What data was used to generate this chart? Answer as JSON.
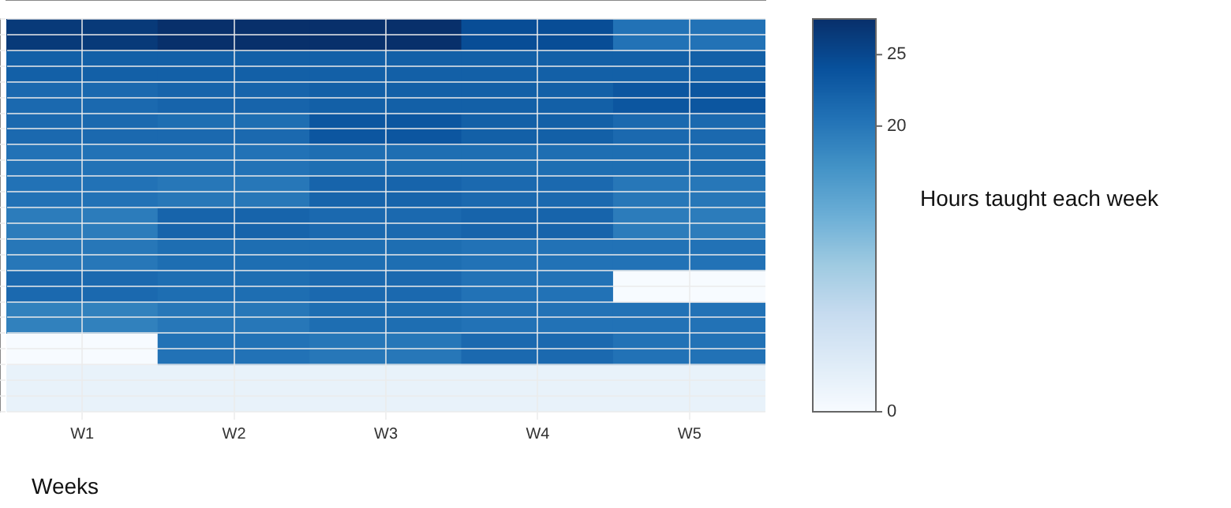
{
  "chart_data": {
    "type": "heatmap",
    "xlabel": "Weeks",
    "clabel": "Hours taught each week",
    "grid": true,
    "categories": [
      "W1",
      "W2",
      "W3",
      "W4",
      "W5"
    ],
    "y_categories": [
      null,
      null,
      null,
      null,
      null,
      null,
      null,
      null,
      null,
      null,
      null,
      null,
      null,
      null,
      null,
      null,
      null,
      null,
      null,
      null,
      null,
      null,
      null,
      null,
      null
    ],
    "cells": [
      [
        26.5,
        27.5,
        27.5,
        24.5,
        20.5
      ],
      [
        26.5,
        27.5,
        27.5,
        24.5,
        20.5
      ],
      [
        22.5,
        22.5,
        22.5,
        22.5,
        22.5
      ],
      [
        22.5,
        22.5,
        22.5,
        22.5,
        22.5
      ],
      [
        21.5,
        22,
        22.5,
        22.5,
        23.5
      ],
      [
        21.5,
        22,
        22.5,
        22.5,
        23.5
      ],
      [
        21.5,
        21,
        23.5,
        22.5,
        21.5
      ],
      [
        21.5,
        21.5,
        23.5,
        22.5,
        21.5
      ],
      [
        20.5,
        20.5,
        21,
        21,
        21
      ],
      [
        20.5,
        20.5,
        21,
        21,
        21
      ],
      [
        20.5,
        20,
        22,
        21.5,
        20
      ],
      [
        20.5,
        20,
        22,
        21.5,
        20
      ],
      [
        19.5,
        22,
        21.5,
        22,
        19.5
      ],
      [
        19.5,
        22,
        21.5,
        22,
        19.5
      ],
      [
        20,
        21,
        21,
        20.5,
        20.5
      ],
      [
        20,
        21,
        21,
        20.5,
        20.5
      ],
      [
        21.5,
        21,
        21.5,
        20.5,
        0
      ],
      [
        21.5,
        21,
        21.5,
        20.5,
        0
      ],
      [
        19,
        20,
        21,
        20.5,
        20.5
      ],
      [
        19,
        20,
        21,
        20.5,
        20.5
      ],
      [
        0,
        20.5,
        20,
        21.5,
        20.5
      ],
      [
        0,
        20.5,
        20,
        21.5,
        20.5
      ],
      [
        2,
        2,
        2,
        2,
        2
      ],
      [
        2,
        2,
        2,
        2,
        2
      ],
      [
        2,
        2,
        2,
        2,
        2
      ]
    ],
    "clim": [
      0,
      27.5
    ],
    "cticks": [
      0,
      20,
      25
    ]
  }
}
